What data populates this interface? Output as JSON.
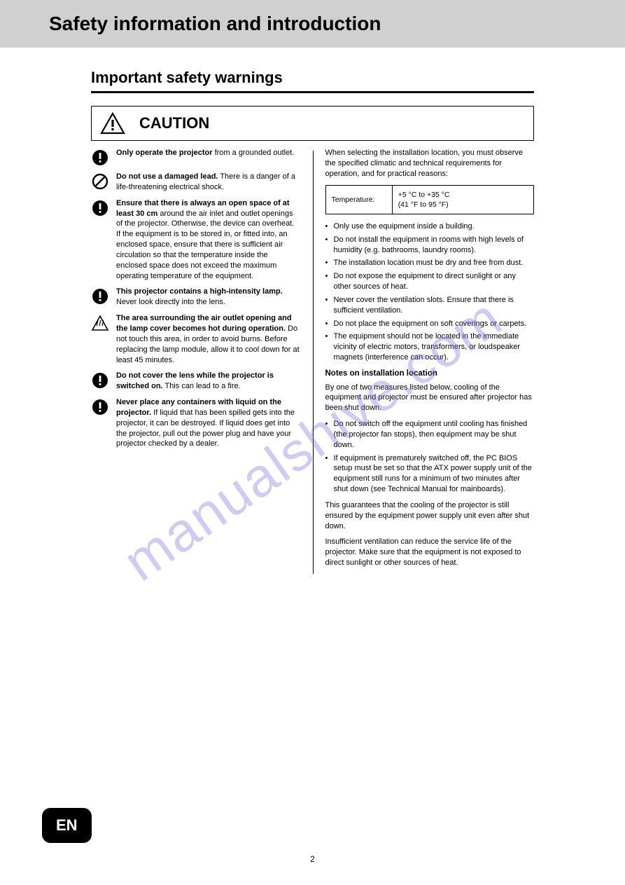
{
  "header": {
    "title": "Safety information and introduction"
  },
  "section": {
    "title": "Important safety warnings"
  },
  "caution_label": "CAUTION",
  "left_items": [
    {
      "icon": "exclaim-circle",
      "html": "<span class='bold-start'>Only operate the projector</span> from a grounded outlet."
    },
    {
      "icon": "prohibit",
      "html": "<span class='bold-start'>Do not use a damaged lead.</span> There is a danger of a life-threatening electrical shock."
    },
    {
      "icon": "exclaim-circle",
      "html": "<span class='bold-start'>Ensure that there is always an open space of at least 30 cm</span> around the air inlet and outlet openings of the projector. Otherwise, the device can overheat. If the equipment is to be stored in, or fitted into, an enclosed space, ensure that there is sufficient air circulation so that the temperature inside the enclosed space does not exceed the maximum operating temperature of the equipment."
    },
    {
      "icon": "exclaim-circle",
      "html": "<span class='bold-start'>This projector contains a high-intensity lamp.</span> Never look directly into the lens."
    },
    {
      "icon": "hot-triangle",
      "html": "<span class='bold-start'>The area surrounding the air outlet opening and the lamp cover becomes hot during operation.</span> Do not touch this area, in order to avoid burns. Before replacing the lamp module, allow it to cool down for at least 45 minutes."
    },
    {
      "icon": "exclaim-circle",
      "html": "<span class='bold-start'>Do not cover the lens while the projector is switched on.</span> This can lead to a fire."
    },
    {
      "icon": "exclaim-circle",
      "html": "<span class='bold-start'>Never place any containers with liquid on the projector.</span> If liquid that has been spilled gets into the projector, it can be destroyed. If liquid does get into the projector, pull out the power plug and have your projector checked by a dealer."
    }
  ],
  "right": {
    "intro": "When selecting the installation location, you must observe the specified climatic and technical requirements for operation, and for practical reasons:",
    "spec": {
      "label": "Temperature:",
      "value": "+5 °C to +35 °C\n(41 °F to 95 °F)"
    },
    "bullets": [
      "Only use the equipment inside a building.",
      "Do not install the equipment in rooms with high levels of humidity (e.g. bathrooms, laundry rooms).",
      "The installation location must be dry and free from dust.",
      "Do not expose the equipment to direct sunlight or any other sources of heat.",
      "Never cover the ventilation slots. Ensure that there is sufficient ventilation.",
      "Do not place the equipment on soft coverings or carpets.",
      "The equipment should not be located in the immediate vicinity of electric motors, transformers, or loudspeaker magnets (interference can occur)."
    ],
    "heading": "Notes on installation location",
    "para1": "By one of two measures listed below, cooling of the equipment and projector must be ensured after projector has been shut down.",
    "sub_bullets": [
      "Do not switch off the equipment until cooling has finished (the projector fan stops), then equipment may be shut down.",
      "If equipment is prematurely switched off, the PC BIOS setup must be set so that the ATX power supply unit of the equipment still runs for a minimum of two minutes after shut down (see Technical Manual for mainboards)."
    ],
    "para2": "This guarantees that the cooling of the projector is still ensured by the equipment power supply unit even after shut down.",
    "para3": "Insufficient ventilation can reduce the service life of the projector. Make sure that the equipment is not exposed to direct sunlight or other sources of heat."
  },
  "lang_tab": "EN",
  "page_number": "2",
  "watermark": "manualshive.com"
}
